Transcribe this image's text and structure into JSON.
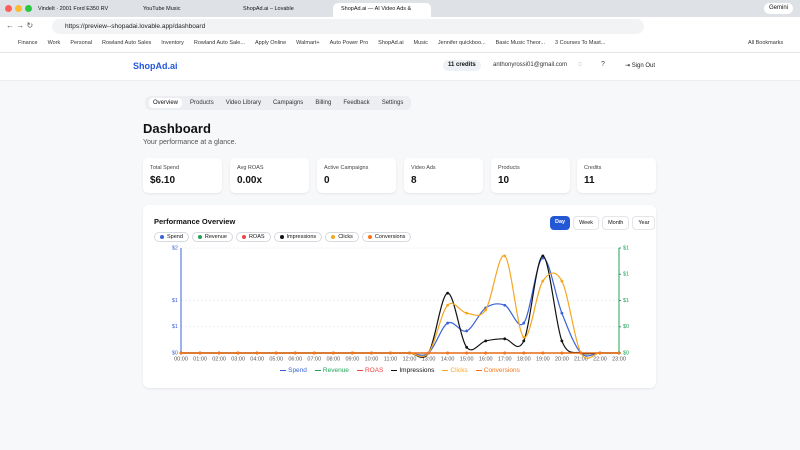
{
  "browser": {
    "tabs": [
      "Vindelt · 2001 Ford E350 RV",
      "YouTube Music",
      "ShopAd.ai – Lovable",
      "ShopAd.ai — AI Video Ads &"
    ],
    "active_tab": 3,
    "url": "https://preview--shopadai.lovable.app/dashboard",
    "gemini": "Gemini",
    "bookmarks": [
      "Finance",
      "Work",
      "Personal",
      "Rowland Auto Sales",
      "Inventory",
      "Rowland Auto Sale...",
      "Apply Online",
      "Walmart+",
      "Auto Power Pro",
      "ShopAd.ai",
      "Music",
      "Jennifer quickboo...",
      "Basic Music Theor...",
      "3 Courses To Mast..."
    ],
    "all_bookmarks": "All Bookmarks"
  },
  "app": {
    "logo": "ShopAd.ai",
    "credits": "11 credits",
    "email": "anthonyrossi01@gmail.com",
    "sign_out": "Sign Out"
  },
  "nav": [
    "Overview",
    "Products",
    "Video Library",
    "Campaigns",
    "Billing",
    "Feedback",
    "Settings"
  ],
  "dashboard": {
    "title": "Dashboard",
    "subtitle": "Your performance at a glance.",
    "stats": [
      {
        "label": "Total Spend",
        "value": "$6.10"
      },
      {
        "label": "Avg ROAS",
        "value": "0.00x"
      },
      {
        "label": "Active Campaigns",
        "value": "0"
      },
      {
        "label": "Video Ads",
        "value": "8"
      },
      {
        "label": "Products",
        "value": "10"
      },
      {
        "label": "Credits",
        "value": "11"
      }
    ],
    "ranges": [
      "Day",
      "Week",
      "Month",
      "Year"
    ],
    "active_range": 0
  },
  "chart_data": {
    "type": "line",
    "title": "Performance Overview",
    "categories": [
      "00:00",
      "01:00",
      "02:00",
      "03:00",
      "04:00",
      "05:00",
      "06:00",
      "07:00",
      "08:00",
      "09:00",
      "10:00",
      "11:00",
      "12:00",
      "13:00",
      "14:00",
      "15:00",
      "16:00",
      "17:00",
      "18:00",
      "19:00",
      "20:00",
      "21:00",
      "22:00",
      "23:00"
    ],
    "ylim": [
      0,
      2
    ],
    "yticks": [
      {
        "value": 0,
        "label": "$0"
      },
      {
        "value": 0.5,
        "label": "$1"
      },
      {
        "value": 1,
        "label": "$1"
      },
      {
        "value": 2,
        "label": "$2"
      }
    ],
    "y2lim": [
      0,
      1.2
    ],
    "y2ticks": [
      {
        "value": 0,
        "label": "$0"
      },
      {
        "value": 0.3,
        "label": "$0"
      },
      {
        "value": 0.6,
        "label": "$1"
      },
      {
        "value": 0.9,
        "label": "$1"
      },
      {
        "value": 1.2,
        "label": "$1"
      }
    ],
    "series": [
      {
        "name": "Spend",
        "color": "#3b63d8",
        "values": [
          0,
          0,
          0,
          0,
          0,
          0,
          0,
          0,
          0,
          0,
          0,
          0,
          0,
          0,
          0.57,
          0.42,
          0.86,
          0.91,
          0.57,
          1.81,
          0.76,
          0,
          0,
          0
        ]
      },
      {
        "name": "Revenue",
        "color": "#22a35a",
        "axis": "y2",
        "values": [
          0,
          0,
          0,
          0,
          0,
          0,
          0,
          0,
          0,
          0,
          0,
          0,
          0,
          0,
          0,
          0,
          0,
          0,
          0,
          0,
          0,
          0,
          0,
          0
        ]
      },
      {
        "name": "ROAS",
        "color": "#ef4444",
        "values": [
          0,
          0,
          0,
          0,
          0,
          0,
          0,
          0,
          0,
          0,
          0,
          0,
          0,
          0,
          0,
          0,
          0,
          0,
          0,
          0,
          0,
          0,
          0,
          0
        ]
      },
      {
        "name": "Impressions",
        "color": "#111111",
        "values": [
          0,
          0,
          0,
          0,
          0,
          0,
          0,
          0,
          0,
          0,
          0,
          0,
          0,
          0,
          1.14,
          0.11,
          0.23,
          0.27,
          0.23,
          1.85,
          0.23,
          0,
          0,
          0
        ]
      },
      {
        "name": "Clicks",
        "color": "#f5a623",
        "values": [
          0,
          0,
          0,
          0,
          0,
          0,
          0,
          0,
          0,
          0,
          0,
          0,
          0,
          0,
          0.91,
          0.76,
          0.82,
          1.85,
          0.3,
          1.37,
          1.37,
          0,
          0,
          0
        ]
      },
      {
        "name": "Conversions",
        "color": "#f97316",
        "values": [
          0,
          0,
          0,
          0,
          0,
          0,
          0,
          0,
          0,
          0,
          0,
          0,
          0,
          0,
          0,
          0,
          0,
          0,
          0,
          0,
          0,
          0,
          0,
          0
        ]
      }
    ]
  }
}
